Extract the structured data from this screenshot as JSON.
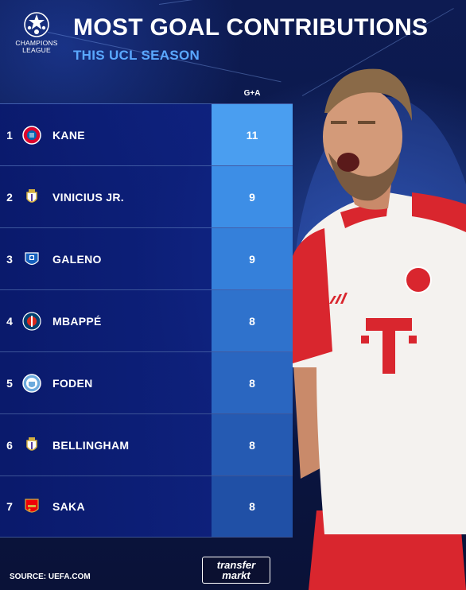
{
  "header": {
    "title": "MOST GOAL CONTRIBUTIONS",
    "subtitle": "THIS UCL SEASON",
    "logo_text_line1": "CHAMPIONS",
    "logo_text_line2": "LEAGUE"
  },
  "table": {
    "column_header": "G+A",
    "rows": [
      {
        "rank": "1",
        "name": "KANE",
        "value": "11",
        "crest": "bayern-crest-icon"
      },
      {
        "rank": "2",
        "name": "VINICIUS JR.",
        "value": "9",
        "crest": "real-madrid-crest-icon"
      },
      {
        "rank": "3",
        "name": "GALENO",
        "value": "9",
        "crest": "porto-crest-icon"
      },
      {
        "rank": "4",
        "name": "MBAPPÉ",
        "value": "8",
        "crest": "psg-crest-icon"
      },
      {
        "rank": "5",
        "name": "FODEN",
        "value": "8",
        "crest": "man-city-crest-icon"
      },
      {
        "rank": "6",
        "name": "BELLINGHAM",
        "value": "8",
        "crest": "real-madrid-crest-icon"
      },
      {
        "rank": "7",
        "name": "SAKA",
        "value": "8",
        "crest": "arsenal-crest-icon"
      }
    ]
  },
  "footer": {
    "source": "SOURCE: UEFA.COM",
    "brand_line1": "transfer",
    "brand_line2": "markt"
  },
  "colors": {
    "value_cell_1": "#4a9ef0",
    "value_cell_2": "#3d8ee6",
    "value_cell_3": "#3580da",
    "value_cell_4": "#2f72cc",
    "value_cell_5": "#2a66c0",
    "value_cell_6": "#255ab2",
    "value_cell_7": "#2050a6",
    "subtitle": "#5aa8ff"
  }
}
